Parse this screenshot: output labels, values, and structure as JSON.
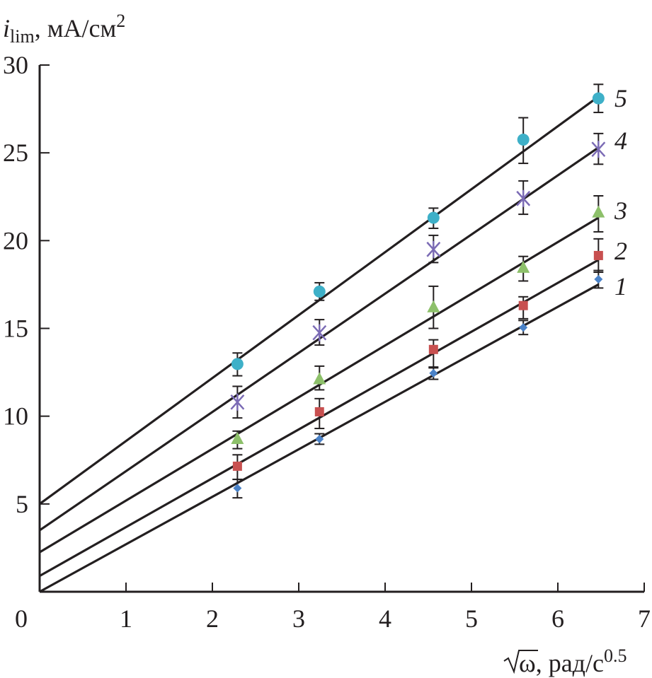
{
  "chart_data": {
    "type": "scatter",
    "title": "",
    "ylabel": {
      "symbol": "i",
      "subscript": "lim",
      "unit": ", мА/см",
      "superscript": "2"
    },
    "xlabel": {
      "radical": "ω",
      "unit": ", рад/с",
      "superscript": "0.5"
    },
    "xlim": [
      0,
      7
    ],
    "ylim": [
      0,
      30
    ],
    "xticks": [
      0,
      1,
      2,
      3,
      4,
      5,
      6,
      7
    ],
    "xtick_labels": [
      "0",
      "1",
      "2",
      "3",
      "4",
      "5",
      "6",
      "7"
    ],
    "yticks": [
      5,
      10,
      15,
      20,
      25,
      30
    ],
    "ytick_labels": [
      "5",
      "10",
      "15",
      "20",
      "25",
      "30"
    ],
    "grid": false,
    "legend": "inline-right",
    "x": [
      2.29,
      3.24,
      4.56,
      5.6,
      6.47
    ],
    "series": [
      {
        "name": "1",
        "marker": "diamond",
        "color": "#4a82c8",
        "values": [
          5.9,
          8.7,
          12.45,
          15.05,
          17.8
        ],
        "err_low": [
          5.35,
          8.4,
          12.1,
          14.65,
          17.3
        ],
        "err_high": [
          6.4,
          9.0,
          12.75,
          15.45,
          18.3
        ],
        "fit": {
          "intercept": 0.0,
          "x_end": 6.47,
          "y_end": 17.5
        }
      },
      {
        "name": "2",
        "marker": "square",
        "color": "#c85050",
        "values": [
          7.15,
          10.25,
          13.8,
          16.3,
          19.15
        ],
        "err_low": [
          6.4,
          9.3,
          12.8,
          15.55,
          18.2
        ],
        "err_high": [
          7.8,
          11.0,
          14.35,
          16.8,
          20.1
        ],
        "fit": {
          "intercept": 0.9,
          "x_end": 6.47,
          "y_end": 18.9
        }
      },
      {
        "name": "3",
        "marker": "triangle",
        "color": "#8dc06a",
        "values": [
          8.7,
          12.1,
          16.2,
          18.45,
          21.6
        ],
        "err_low": [
          8.15,
          11.5,
          15.0,
          17.7,
          20.5
        ],
        "err_high": [
          9.15,
          12.85,
          17.4,
          19.1,
          22.55
        ],
        "fit": {
          "intercept": 2.25,
          "x_end": 6.47,
          "y_end": 21.3
        }
      },
      {
        "name": "4",
        "marker": "cross",
        "color": "#7b6bb5",
        "values": [
          10.8,
          14.75,
          19.5,
          22.4,
          25.2
        ],
        "err_low": [
          9.9,
          14.05,
          18.75,
          21.5,
          24.35
        ],
        "err_high": [
          11.7,
          15.5,
          20.3,
          23.4,
          26.1
        ],
        "fit": {
          "intercept": 3.5,
          "x_end": 6.47,
          "y_end": 25.3
        }
      },
      {
        "name": "5",
        "marker": "circle",
        "color": "#3eb0c8",
        "values": [
          12.97,
          17.1,
          21.3,
          25.75,
          28.1
        ],
        "err_low": [
          12.3,
          16.6,
          20.7,
          24.4,
          27.3
        ],
        "err_high": [
          13.6,
          17.6,
          21.85,
          27.0,
          28.9
        ],
        "fit": {
          "intercept": 5.0,
          "x_end": 6.47,
          "y_end": 28.2
        }
      }
    ],
    "series_labels": [
      {
        "text": "5",
        "y": 28.1
      },
      {
        "text": "4",
        "y": 25.7
      },
      {
        "text": "3",
        "y": 21.7
      },
      {
        "text": "2",
        "y": 19.4
      },
      {
        "text": "1",
        "y": 17.4
      }
    ]
  }
}
